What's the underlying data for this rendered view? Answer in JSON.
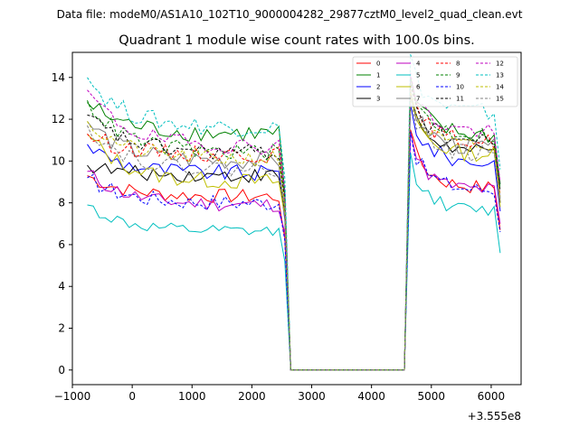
{
  "figure": {
    "suptitle": "Data file: modeM0/AS1A10_102T10_9000004282_29877cztM0_level2_quad_clean.evt"
  },
  "chart_data": {
    "type": "line",
    "title": "Quadrant 1 module wise count rates with 100.0s bins.",
    "xlabel": "",
    "ylabel": "",
    "x_offset_label": "+3.555e8",
    "xlim": [
      -1000,
      6500
    ],
    "ylim": [
      -0.7,
      15.2
    ],
    "x_ticks": [
      -1000,
      0,
      1000,
      2000,
      3000,
      4000,
      5000,
      6000
    ],
    "x_tick_labels": [
      "−1000",
      "0",
      "1000",
      "2000",
      "3000",
      "4000",
      "5000",
      "6000"
    ],
    "y_ticks": [
      0,
      2,
      4,
      6,
      8,
      10,
      12,
      14
    ],
    "y_tick_labels": [
      "0",
      "2",
      "4",
      "6",
      "8",
      "10",
      "12",
      "14"
    ],
    "grid": false,
    "legend": {
      "position": "top-right",
      "columns": 4
    },
    "time_segments": [
      {
        "x_start": -750,
        "x_end": 2550,
        "step": 100,
        "kind": "data"
      },
      {
        "x_start": 2650,
        "x_end": 4550,
        "step": 100,
        "kind": "gap"
      },
      {
        "x_start": 4650,
        "x_end": 6150,
        "step": 100,
        "kind": "data"
      }
    ],
    "series": [
      {
        "name": "0",
        "color": "#ff0000",
        "dashed": false,
        "level_1": 8.3,
        "level_2": 8.7,
        "first": 9.3,
        "noise": 0.35,
        "drop": 6.3
      },
      {
        "name": "1",
        "color": "#008000",
        "dashed": false,
        "level_1": 11.3,
        "level_2": 11.2,
        "first": 12.8,
        "noise": 0.45,
        "drop": 8.5
      },
      {
        "name": "2",
        "color": "#0000ff",
        "dashed": false,
        "level_1": 9.4,
        "level_2": 9.9,
        "first": 10.8,
        "noise": 0.4,
        "drop": 7.2
      },
      {
        "name": "3",
        "color": "#000000",
        "dashed": false,
        "level_1": 9.3,
        "level_2": 10.4,
        "first": 9.8,
        "noise": 0.35,
        "drop": 7.6
      },
      {
        "name": "4",
        "color": "#bf00bf",
        "dashed": false,
        "level_1": 7.9,
        "level_2": 8.6,
        "first": 9.5,
        "noise": 0.35,
        "drop": 6.6
      },
      {
        "name": "5",
        "color": "#00bfbf",
        "dashed": false,
        "level_1": 6.6,
        "level_2": 7.6,
        "first": 7.9,
        "noise": 0.3,
        "drop": 5.2
      },
      {
        "name": "6",
        "color": "#bfbf00",
        "dashed": false,
        "level_1": 9.0,
        "level_2": 10.3,
        "first": 11.3,
        "noise": 0.4,
        "drop": 7.4
      },
      {
        "name": "7",
        "color": "#808080",
        "dashed": false,
        "level_1": 10.0,
        "level_2": 10.6,
        "first": 11.9,
        "noise": 0.45,
        "drop": 7.8
      },
      {
        "name": "8",
        "color": "#ff0000",
        "dashed": true,
        "level_1": 10.3,
        "level_2": 10.9,
        "first": 11.3,
        "noise": 0.4,
        "drop": 8.0
      },
      {
        "name": "9",
        "color": "#008000",
        "dashed": true,
        "level_1": 10.4,
        "level_2": 11.2,
        "first": 12.9,
        "noise": 0.4,
        "drop": 8.3
      },
      {
        "name": "10",
        "color": "#0000ff",
        "dashed": true,
        "level_1": 8.0,
        "level_2": 8.6,
        "first": 9.2,
        "noise": 0.4,
        "drop": 6.2
      },
      {
        "name": "11",
        "color": "#000000",
        "dashed": true,
        "level_1": 10.4,
        "level_2": 10.9,
        "first": 12.2,
        "noise": 0.4,
        "drop": 8.2
      },
      {
        "name": "12",
        "color": "#bf00bf",
        "dashed": true,
        "level_1": 10.7,
        "level_2": 11.4,
        "first": 13.4,
        "noise": 0.4,
        "drop": 8.6
      },
      {
        "name": "13",
        "color": "#00bfbf",
        "dashed": true,
        "level_1": 11.6,
        "level_2": 12.3,
        "first": 14.0,
        "noise": 0.45,
        "drop": 9.2
      },
      {
        "name": "14",
        "color": "#bfbf00",
        "dashed": true,
        "level_1": 10.1,
        "level_2": 10.6,
        "first": 11.9,
        "noise": 0.4,
        "drop": 7.9
      },
      {
        "name": "15",
        "color": "#808080",
        "dashed": true,
        "level_1": 9.6,
        "level_2": 10.3,
        "first": 11.7,
        "noise": 0.4,
        "drop": 7.7
      }
    ]
  }
}
